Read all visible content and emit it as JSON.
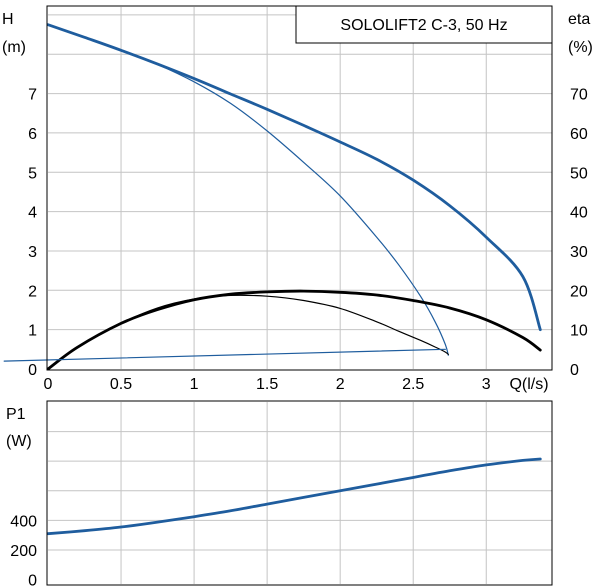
{
  "colors": {
    "head_curve": "#1f5d9e",
    "efficiency_curve": "#000000",
    "power_curve": "#1f5d9e",
    "grid": "#c4c4c4",
    "frame": "#000000"
  },
  "chart_data": [
    {
      "type": "line",
      "title": "SOLOLIFT2 C-3, 50 Hz",
      "xlabel": "Q(l/s)",
      "ylabel_left": "H",
      "ylabel_left_unit": "(m)",
      "ylabel_right": "eta",
      "ylabel_right_unit": "(%)",
      "xlim": [
        0,
        3.45
      ],
      "ylim_left": [
        0,
        9.2
      ],
      "ylim_right": [
        0,
        92
      ],
      "grid": true,
      "legend": "none",
      "x_ticks": [
        {
          "value": 0,
          "label": "0"
        },
        {
          "value": 0.5,
          "label": "0.5"
        },
        {
          "value": 1,
          "label": "1"
        },
        {
          "value": 1.5,
          "label": "1.5"
        },
        {
          "value": 2,
          "label": "2"
        },
        {
          "value": 2.5,
          "label": "2.5"
        },
        {
          "value": 3,
          "label": "3"
        }
      ],
      "y_ticks_left": [
        {
          "value": 0,
          "label": "0"
        },
        {
          "value": 1,
          "label": "1"
        },
        {
          "value": 2,
          "label": "2"
        },
        {
          "value": 3,
          "label": "3"
        },
        {
          "value": 4,
          "label": "4"
        },
        {
          "value": 5,
          "label": "5"
        },
        {
          "value": 6,
          "label": "6"
        },
        {
          "value": 7,
          "label": "7"
        }
      ],
      "y_ticks_right": [
        {
          "value": 0,
          "label": "0"
        },
        {
          "value": 10,
          "label": "10"
        },
        {
          "value": 20,
          "label": "20"
        },
        {
          "value": 30,
          "label": "30"
        },
        {
          "value": 40,
          "label": "40"
        },
        {
          "value": 50,
          "label": "50"
        },
        {
          "value": 60,
          "label": "60"
        },
        {
          "value": 70,
          "label": "70"
        }
      ],
      "series": [
        {
          "axis": "left",
          "weight": "thick",
          "color": "#1f5d9e",
          "x": [
            0,
            0.25,
            0.5,
            0.75,
            1.0,
            1.25,
            1.5,
            1.75,
            2.0,
            2.25,
            2.5,
            2.75,
            3.0,
            3.25,
            3.37
          ],
          "y": [
            8.75,
            8.43,
            8.1,
            7.75,
            7.38,
            6.99,
            6.6,
            6.19,
            5.77,
            5.33,
            4.8,
            4.15,
            3.35,
            2.35,
            1.0
          ]
        },
        {
          "axis": "left",
          "weight": "thin",
          "color": "#1f5d9e",
          "x": [
            0,
            0.25,
            0.5,
            0.75,
            1.0,
            1.25,
            1.5,
            1.75,
            2.0,
            2.25,
            2.4,
            2.55,
            2.65,
            2.72,
            2.74
          ],
          "y": [
            8.75,
            8.43,
            8.1,
            7.74,
            7.3,
            6.75,
            6.05,
            5.25,
            4.4,
            3.35,
            2.65,
            1.85,
            1.2,
            0.62,
            0.35
          ]
        },
        {
          "axis": "right",
          "weight": "thick",
          "color": "#000000",
          "x": [
            0,
            0.2,
            0.5,
            0.75,
            1.0,
            1.25,
            1.5,
            1.75,
            2.0,
            2.25,
            2.5,
            2.75,
            3.0,
            3.25,
            3.37
          ],
          "y": [
            0,
            5.5,
            11.6,
            15.1,
            17.6,
            19.0,
            19.6,
            19.8,
            19.5,
            18.8,
            17.4,
            15.5,
            12.5,
            8.0,
            4.8
          ]
        },
        {
          "axis": "right",
          "weight": "thin",
          "color": "#000000",
          "x": [
            0,
            0.2,
            0.5,
            0.75,
            1.0,
            1.25,
            1.5,
            1.75,
            2.0,
            2.25,
            2.4,
            2.55,
            2.65,
            2.72,
            2.74
          ],
          "y": [
            0,
            5.5,
            11.6,
            15.5,
            17.8,
            18.7,
            18.5,
            17.4,
            15.4,
            12.0,
            9.6,
            7.3,
            5.6,
            4.3,
            3.7
          ]
        },
        {
          "axis": "left",
          "weight": "thin",
          "color": "#1f5d9e",
          "x": [
            -0.3,
            2.72
          ],
          "y": [
            0.2,
            0.5
          ]
        }
      ]
    },
    {
      "type": "line",
      "xlabel": "",
      "ylabel": "P1",
      "ylabel_unit": "(W)",
      "xlim": [
        0,
        3.45
      ],
      "ylim": [
        -30,
        1200
      ],
      "grid": true,
      "legend": "none",
      "y_ticks": [
        {
          "value": 0,
          "label": "0"
        },
        {
          "value": 200,
          "label": "200"
        },
        {
          "value": 400,
          "label": "400"
        }
      ],
      "series": [
        {
          "axis": "left",
          "weight": "thick",
          "color": "#1f5d9e",
          "x": [
            0,
            0.25,
            0.5,
            0.75,
            1.0,
            1.25,
            1.5,
            1.75,
            2.0,
            2.25,
            2.5,
            2.75,
            3.0,
            3.25,
            3.37
          ],
          "y": [
            310,
            330,
            355,
            388,
            425,
            465,
            510,
            555,
            600,
            645,
            690,
            735,
            775,
            805,
            815
          ]
        }
      ]
    }
  ]
}
